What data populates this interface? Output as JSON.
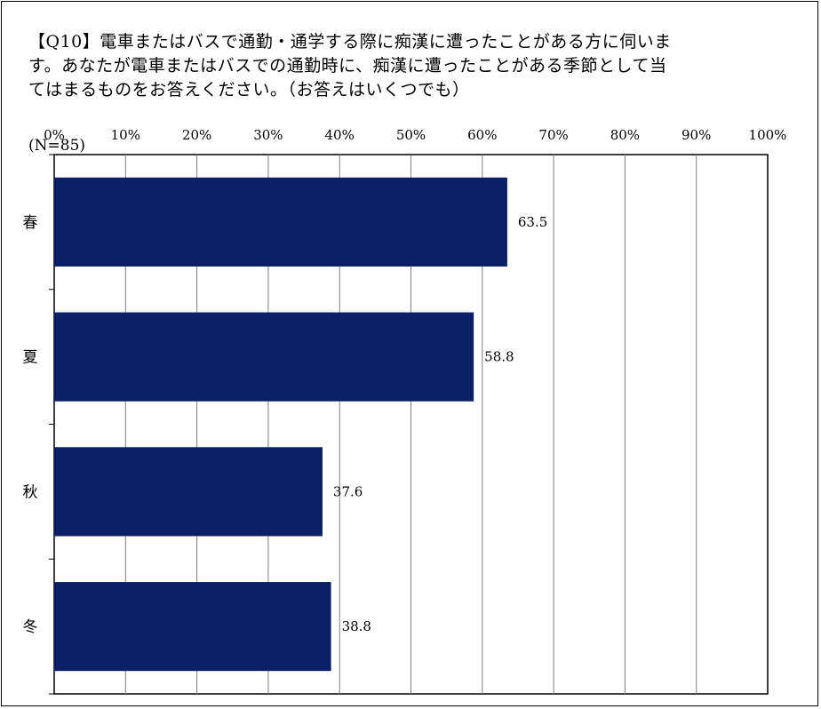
{
  "title": "【Q10】電車またはバスで通勤・通学する際に痴漢に遭ったことがある方に伺います。あなたが電車またはバスでの通勤時に、痴漢に遭ったことがある季節として当てはまるものをお答えください。（お答えはいくつでも）",
  "sample_label": "(N=85)",
  "colors": {
    "bar": "#0a1f66",
    "grid": "#808080",
    "axis": "#000000"
  },
  "chart_data": {
    "type": "bar",
    "orientation": "horizontal",
    "categories": [
      "春",
      "夏",
      "秋",
      "冬"
    ],
    "values": [
      63.5,
      58.8,
      37.6,
      38.8
    ],
    "xlim": [
      0,
      100
    ],
    "xticks": [
      "0%",
      "10%",
      "20%",
      "30%",
      "40%",
      "50%",
      "60%",
      "70%",
      "80%",
      "90%",
      "100%"
    ],
    "tick_step": 10,
    "grid": true,
    "title": "【Q10】電車またはバスで通勤・通学する際に痴漢に遭ったことがある方に伺います。あなたが電車またはバスでの通勤時に、痴漢に遭ったことがある季節として当てはまるものをお答えください。（お答えはいくつでも）",
    "xlabel": "",
    "ylabel": ""
  }
}
